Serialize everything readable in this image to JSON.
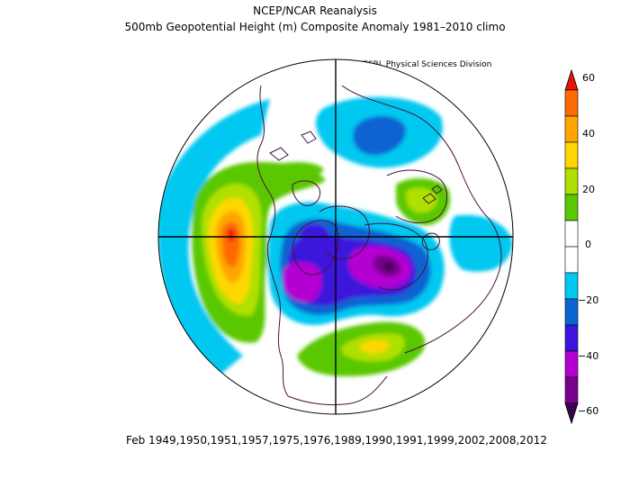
{
  "header": {
    "title_line1": "NCEP/NCAR Reanalysis",
    "title_line2": "500mb Geopotential Height (m) Composite Anomaly 1981–2010 climo",
    "credit": "NOAA/ESRL Physical Sciences Division"
  },
  "footer": {
    "dates": "Feb 1949,1950,1951,1957,1975,1976,1989,1990,1991,1999,2002,2008,2012"
  },
  "colorbar": {
    "labels": [
      "60",
      "40",
      "20",
      "0",
      "−20",
      "−40",
      "−60"
    ],
    "colors": [
      "#e8140c",
      "#ff6a00",
      "#ffa500",
      "#ffd700",
      "#b0e000",
      "#5ac800",
      "#ffffff",
      "#ffffff",
      "#00c8f0",
      "#0a64d2",
      "#3c14dc",
      "#b400d2",
      "#78008c",
      "#3c0050"
    ]
  },
  "map": {
    "projection": "north-polar-stereographic",
    "coastline_color": "#4a1040"
  }
}
